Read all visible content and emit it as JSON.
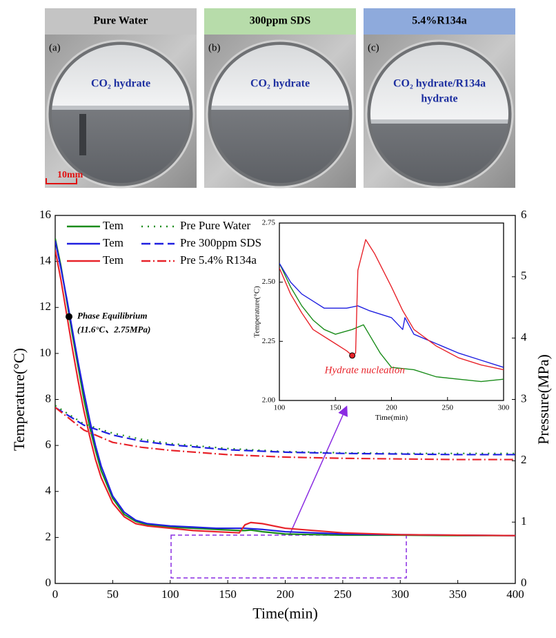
{
  "panels": [
    {
      "header": "Pure Water",
      "header_color": "#c4c4c4",
      "letter": "(a)",
      "label": [
        "CO₂ hydrate"
      ],
      "scale_bar": "10mm"
    },
    {
      "header": "300ppm SDS",
      "header_color": "#b7dcaa",
      "letter": "(b)",
      "label": [
        "CO₂ hydrate"
      ]
    },
    {
      "header": "5.4%R134a",
      "header_color": "#8eaadc",
      "letter": "(c)",
      "label": [
        "CO₂ hydrate/R134a",
        "hydrate"
      ]
    }
  ],
  "chart_data": [
    {
      "type": "line",
      "x_label": "Time(min)",
      "y_label": "Temperature(°C)",
      "y2_label": "Pressure(MPa)",
      "xlim": [
        0,
        400
      ],
      "xticks": [
        0,
        50,
        100,
        150,
        200,
        250,
        300,
        350,
        400
      ],
      "ylim": [
        0,
        16
      ],
      "yticks": [
        0,
        2,
        4,
        6,
        8,
        10,
        12,
        14,
        16
      ],
      "y2lim": [
        0,
        6
      ],
      "y2ticks": [
        0,
        1,
        2,
        3,
        4,
        5,
        6
      ],
      "legend": "upper left",
      "annotation": {
        "lines": [
          "Phase Equilibrium",
          "(11.6°C、2.75MPa)"
        ],
        "x": 12,
        "y": 11.6
      },
      "series": [
        {
          "name": "Tem",
          "color": "#1a8c1a",
          "dash": "solid",
          "x": [
            0,
            5,
            10,
            15,
            20,
            25,
            30,
            35,
            40,
            50,
            60,
            70,
            80,
            90,
            100,
            120,
            140,
            160,
            165,
            170,
            180,
            200,
            250,
            300,
            350,
            400
          ],
          "values": [
            15,
            13.8,
            12.3,
            10.8,
            9.4,
            8.0,
            6.8,
            5.8,
            4.9,
            3.7,
            3.0,
            2.7,
            2.55,
            2.5,
            2.45,
            2.4,
            2.35,
            2.3,
            2.3,
            2.32,
            2.25,
            2.15,
            2.1,
            2.1,
            2.08,
            2.08
          ]
        },
        {
          "name": "Tem",
          "color": "#1f1fe0",
          "dash": "solid",
          "x": [
            0,
            5,
            10,
            15,
            20,
            25,
            30,
            35,
            40,
            50,
            60,
            70,
            80,
            90,
            100,
            120,
            140,
            160,
            165,
            170,
            180,
            200,
            250,
            300,
            350,
            400
          ],
          "values": [
            14.9,
            13.7,
            12.4,
            11.0,
            9.6,
            8.3,
            7.1,
            6.0,
            5.1,
            3.8,
            3.1,
            2.75,
            2.6,
            2.55,
            2.5,
            2.45,
            2.4,
            2.4,
            2.4,
            2.38,
            2.35,
            2.25,
            2.15,
            2.12,
            2.1,
            2.08
          ]
        },
        {
          "name": "Tem",
          "color": "#e8232a",
          "dash": "solid",
          "x": [
            0,
            5,
            10,
            15,
            20,
            25,
            30,
            35,
            40,
            50,
            60,
            70,
            80,
            90,
            100,
            120,
            140,
            160,
            165,
            170,
            180,
            200,
            250,
            300,
            350,
            400
          ],
          "values": [
            14.5,
            13.2,
            11.7,
            10.2,
            8.8,
            7.5,
            6.4,
            5.4,
            4.6,
            3.5,
            2.9,
            2.6,
            2.5,
            2.45,
            2.4,
            2.3,
            2.25,
            2.2,
            2.55,
            2.65,
            2.6,
            2.4,
            2.2,
            2.12,
            2.1,
            2.08
          ]
        },
        {
          "name": "Pre Pure Water",
          "color": "#1a8c1a",
          "dash": "dotted",
          "axis": "y2",
          "x": [
            0,
            25,
            50,
            75,
            100,
            150,
            200,
            250,
            300,
            350,
            400
          ],
          "values": [
            2.9,
            2.6,
            2.45,
            2.35,
            2.28,
            2.2,
            2.15,
            2.13,
            2.12,
            2.12,
            2.12
          ]
        },
        {
          "name": "Pre 300ppm SDS",
          "color": "#1f1fe0",
          "dash": "dashed",
          "axis": "y2",
          "x": [
            0,
            25,
            50,
            75,
            100,
            150,
            200,
            250,
            300,
            350,
            400
          ],
          "values": [
            2.87,
            2.58,
            2.42,
            2.32,
            2.26,
            2.18,
            2.14,
            2.12,
            2.11,
            2.1,
            2.1
          ]
        },
        {
          "name": "Pre 5.4% R134a",
          "color": "#e8232a",
          "dash": "dashdot",
          "axis": "y2",
          "x": [
            0,
            25,
            50,
            75,
            100,
            150,
            200,
            250,
            300,
            350,
            400
          ],
          "values": [
            2.87,
            2.5,
            2.3,
            2.22,
            2.17,
            2.1,
            2.06,
            2.04,
            2.03,
            2.02,
            2.02
          ]
        }
      ]
    },
    {
      "type": "line",
      "x_label": "Time(min)",
      "y_label": "Temperature(°C)",
      "xlim": [
        100,
        300
      ],
      "xticks": [
        100,
        150,
        200,
        250,
        300
      ],
      "ylim": [
        2.0,
        2.75
      ],
      "yticks": [
        {
          "value": 2.0,
          "label": "2.00"
        },
        {
          "value": 2.25,
          "label": "2.25"
        },
        {
          "value": 2.5,
          "label": "2.50"
        },
        {
          "value": 2.75,
          "label": "2.75"
        }
      ],
      "annotation": {
        "lines": [
          "Hydrate nucleation"
        ],
        "x": 165,
        "y": 2.19,
        "color": "#e8232a"
      },
      "series": [
        {
          "color": "#1a8c1a",
          "dash": "solid",
          "x": [
            100,
            110,
            120,
            130,
            140,
            150,
            165,
            175,
            180,
            190,
            200,
            220,
            240,
            260,
            280,
            300
          ],
          "values": [
            2.58,
            2.48,
            2.4,
            2.34,
            2.3,
            2.28,
            2.3,
            2.32,
            2.28,
            2.2,
            2.14,
            2.13,
            2.1,
            2.09,
            2.08,
            2.09
          ]
        },
        {
          "color": "#1f1fe0",
          "dash": "solid",
          "x": [
            100,
            110,
            120,
            130,
            140,
            160,
            170,
            180,
            200,
            210,
            212,
            220,
            240,
            260,
            280,
            300
          ],
          "values": [
            2.58,
            2.5,
            2.45,
            2.42,
            2.39,
            2.39,
            2.4,
            2.38,
            2.35,
            2.3,
            2.35,
            2.28,
            2.24,
            2.2,
            2.17,
            2.14
          ]
        },
        {
          "color": "#e8232a",
          "dash": "solid",
          "x": [
            100,
            110,
            120,
            130,
            140,
            150,
            160,
            165,
            168,
            170,
            177,
            185,
            200,
            210,
            220,
            240,
            260,
            280,
            300
          ],
          "values": [
            2.56,
            2.45,
            2.37,
            2.3,
            2.27,
            2.24,
            2.21,
            2.19,
            2.2,
            2.55,
            2.68,
            2.62,
            2.48,
            2.38,
            2.3,
            2.23,
            2.18,
            2.15,
            2.13
          ]
        }
      ]
    }
  ]
}
